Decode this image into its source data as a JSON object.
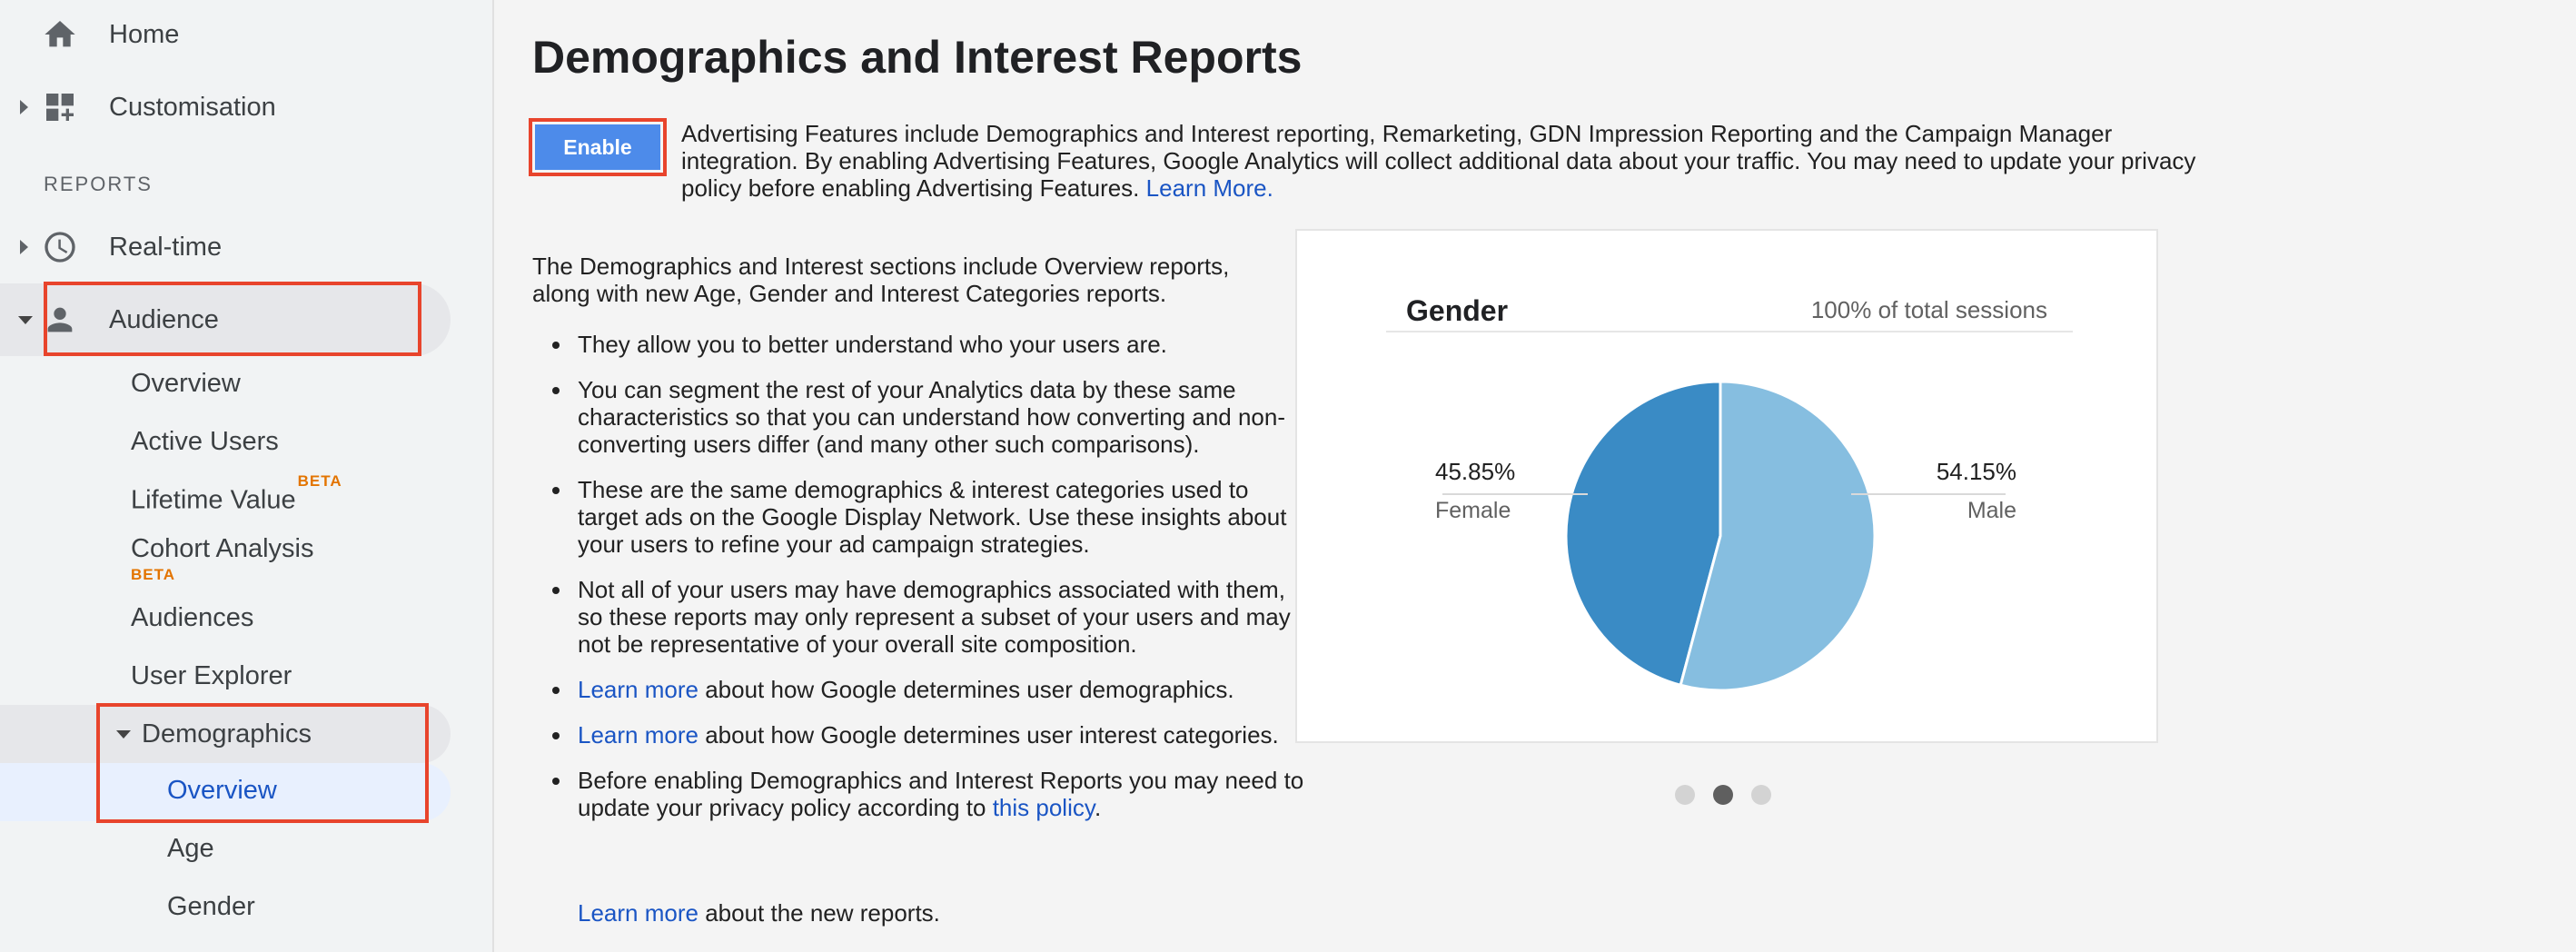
{
  "sidebar": {
    "home": "Home",
    "customisation": "Customisation",
    "reports_heading": "REPORTS",
    "realtime": "Real-time",
    "audience": "Audience",
    "audience_items": {
      "overview": "Overview",
      "active_users": "Active Users",
      "lifetime_value": "Lifetime Value",
      "lifetime_badge": "BETA",
      "cohort_analysis": "Cohort Analysis",
      "cohort_badge": "BETA",
      "audiences": "Audiences",
      "user_explorer": "User Explorer",
      "demographics": "Demographics"
    },
    "demographics_items": {
      "overview": "Overview",
      "age": "Age",
      "gender": "Gender"
    }
  },
  "main": {
    "title": "Demographics and Interest Reports",
    "enable_label": "Enable",
    "adv_text": "Advertising Features include Demographics and Interest reporting, Remarketing, GDN Impression Reporting and the Campaign Manager integration. By enabling Advertising Features, Google Analytics will collect additional data about your traffic. You may need to update your privacy policy before enabling Advertising Features.",
    "adv_link": "Learn More.",
    "intro": "The Demographics and Interest sections include Overview reports, along with new Age, Gender and Interest Categories reports.",
    "bullets": {
      "b1": "They allow you to better understand who your users are.",
      "b2": "You can segment the rest of your Analytics data by these same characteristics so that you can understand how converting and non-converting users differ (and many other such comparisons).",
      "b3": "These are the same demographics & interest categories used to target ads on the Google Display Network. Use these insights about your users to refine your ad campaign strategies.",
      "b4": "Not all of your users may have demographics associated with them, so these reports may only represent a subset of your users and may not be representative of your overall site composition.",
      "b5_link": "Learn more",
      "b5_text": " about how Google determines user demographics.",
      "b6_link": "Learn more",
      "b6_text": " about how Google determines user interest categories.",
      "b7_text": "Before enabling Demographics and Interest Reports you may need to update your privacy policy according to ",
      "b7_link": "this policy",
      "b7_end": "."
    },
    "bottom_link": "Learn more",
    "bottom_text": " about the new reports."
  },
  "card": {
    "carousel_active_index": 1,
    "carousel_count": 3
  },
  "colors": {
    "female": "#3a8bc5",
    "male": "#86bee0",
    "accent": "#4d8bea",
    "highlight": "#e8442c",
    "link": "#1a55c4"
  },
  "chart_data": {
    "type": "pie",
    "title": "Gender",
    "subtitle": "100% of total sessions",
    "slices": [
      {
        "name": "Female",
        "value": 45.85,
        "label": "45.85%",
        "color": "#3a8bc5"
      },
      {
        "name": "Male",
        "value": 54.15,
        "label": "54.15%",
        "color": "#86bee0"
      }
    ]
  }
}
